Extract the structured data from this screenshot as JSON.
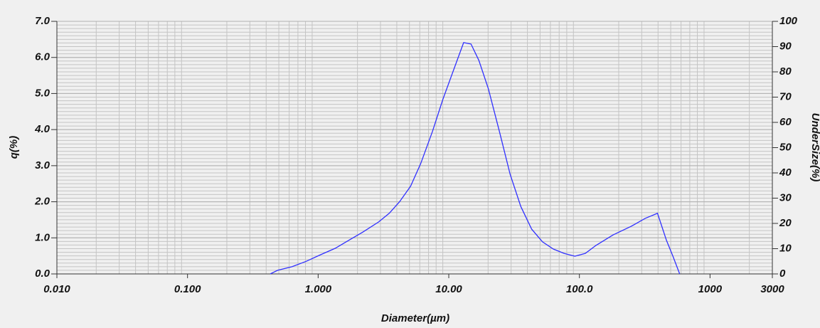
{
  "chart_data": {
    "type": "line",
    "xlabel": "Diameter(µm)",
    "ylabel": "q(%)",
    "y2label": "UnderSize(%)",
    "xscale": "log",
    "grid": true,
    "x": [
      0.43,
      0.49,
      0.63,
      0.81,
      1.04,
      1.35,
      1.75,
      2.2,
      2.9,
      3.5,
      4.2,
      5.1,
      6.1,
      7.5,
      9.0,
      10.8,
      13.0,
      14.8,
      17.0,
      20.1,
      24.4,
      29.5,
      35.6,
      43.1,
      52.2,
      63.1,
      76.3,
      92.3,
      111,
      134,
      181,
      249,
      319,
      396,
      464,
      520,
      586
    ],
    "series": [
      {
        "color": "#3030ff",
        "values": [
          0,
          0.1,
          0.2,
          0.35,
          0.53,
          0.71,
          0.95,
          1.16,
          1.44,
          1.68,
          2.0,
          2.43,
          3.06,
          3.95,
          4.83,
          5.62,
          6.41,
          6.37,
          5.92,
          5.13,
          3.95,
          2.76,
          1.87,
          1.24,
          0.89,
          0.69,
          0.57,
          0.49,
          0.57,
          0.79,
          1.08,
          1.32,
          1.54,
          1.68,
          0.93,
          0.49,
          0
        ]
      }
    ],
    "xlim": [
      0.01,
      3000
    ],
    "xticks": [
      {
        "value": 0.01,
        "label": "0.010"
      },
      {
        "value": 0.1,
        "label": "0.100"
      },
      {
        "value": 1,
        "label": "1.000"
      },
      {
        "value": 10,
        "label": "10.00"
      },
      {
        "value": 100,
        "label": "100.0"
      },
      1000,
      3000
    ],
    "ylim": [
      0,
      7
    ],
    "yticks": [
      {
        "value": 0,
        "label": "0.0"
      },
      {
        "value": 1,
        "label": "1.0"
      },
      {
        "value": 2,
        "label": "2.0"
      },
      {
        "value": 3,
        "label": "3.0"
      },
      {
        "value": 4,
        "label": "4.0"
      },
      {
        "value": 5,
        "label": "5.0"
      },
      {
        "value": 6,
        "label": "6.0"
      },
      {
        "value": 7,
        "label": "7.0"
      }
    ],
    "y2lim": [
      0,
      100
    ],
    "y2ticks": [
      0,
      10,
      20,
      30,
      40,
      50,
      60,
      70,
      80,
      90,
      100
    ]
  }
}
